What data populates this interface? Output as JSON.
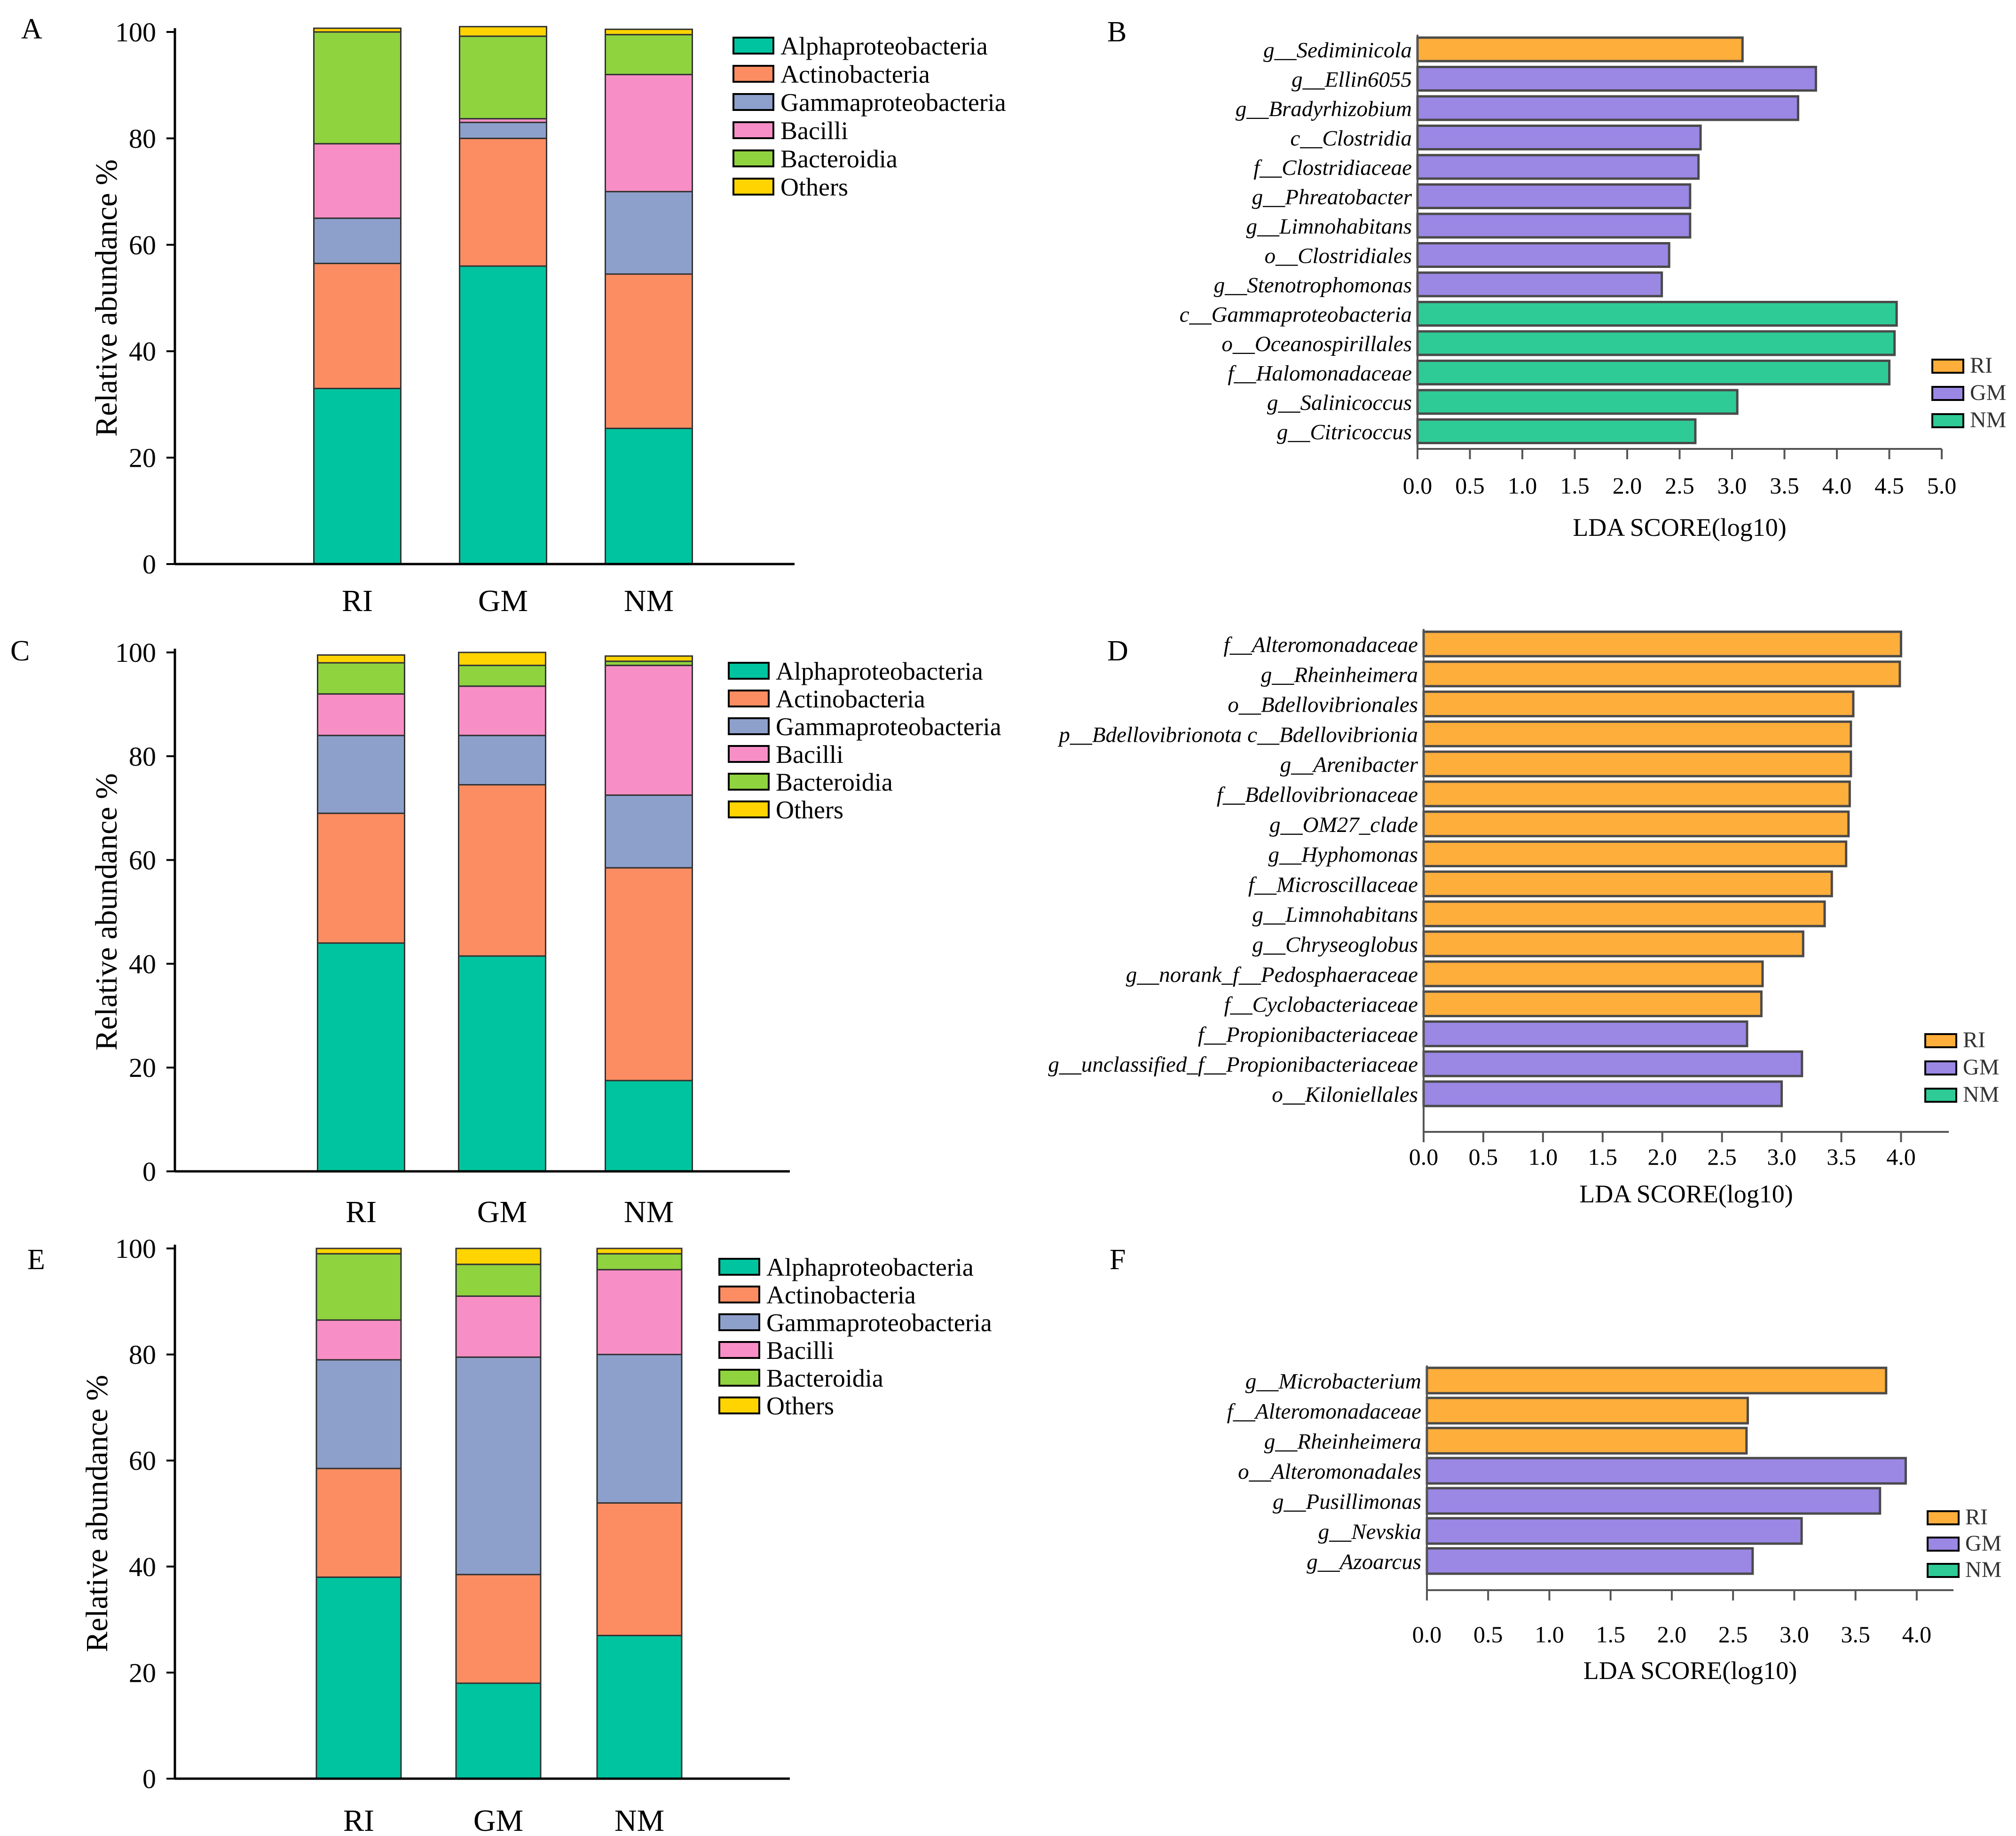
{
  "colors": {
    "Alphaproteobacteria": "#00c49f",
    "Actinobacteria": "#fc8d62",
    "Gammaproteobacteria": "#8da0cb",
    "Bacilli": "#f78fc6",
    "Bacteroidia": "#8fd33f",
    "Others": "#ffd400",
    "RI": "#fdae3b",
    "GM": "#9b87e4",
    "NM": "#2ecb96"
  },
  "chart_data": [
    {
      "panel": "A",
      "type": "bar",
      "stacked": true,
      "ylabel": "Relative abundance  %",
      "ylim": [
        0,
        100
      ],
      "yticks": [
        "0",
        "20",
        "40",
        "60",
        "80",
        "100"
      ],
      "categories": [
        "RI",
        "GM",
        "NM"
      ],
      "legend": [
        "Alphaproteobacteria",
        "Actinobacteria",
        "Gammaproteobacteria",
        "Bacilli",
        "Bacteroidia",
        "Others"
      ],
      "series": [
        {
          "name": "Alphaproteobacteria",
          "values": [
            33,
            56,
            25.5
          ]
        },
        {
          "name": "Actinobacteria",
          "values": [
            23.5,
            24,
            29
          ]
        },
        {
          "name": "Gammaproteobacteria",
          "values": [
            8.5,
            3,
            15.5
          ]
        },
        {
          "name": "Bacilli",
          "values": [
            14,
            0.7,
            22
          ]
        },
        {
          "name": "Bacteroidia",
          "values": [
            21,
            15.5,
            7.5
          ]
        },
        {
          "name": "Others",
          "values": [
            0.7,
            1.8,
            1
          ]
        }
      ]
    },
    {
      "panel": "B",
      "type": "bar",
      "orientation": "horizontal",
      "xlabel": "LDA SCORE(log10)",
      "xlim": [
        0,
        5
      ],
      "xticks": [
        "0.0",
        "0.5",
        "1.0",
        "1.5",
        "2.0",
        "2.5",
        "3.0",
        "3.5",
        "4.0",
        "4.5",
        "5.0"
      ],
      "legend": [
        "RI",
        "GM",
        "NM"
      ],
      "bars": [
        {
          "label": "g__Sediminicola",
          "group": "RI",
          "value": 3.1
        },
        {
          "label": "g__Ellin6055",
          "group": "GM",
          "value": 3.8
        },
        {
          "label": "g__Bradyrhizobium",
          "group": "GM",
          "value": 3.63
        },
        {
          "label": "c__Clostridia",
          "group": "GM",
          "value": 2.7
        },
        {
          "label": "f__Clostridiaceae",
          "group": "GM",
          "value": 2.68
        },
        {
          "label": "g__Phreatobacter",
          "group": "GM",
          "value": 2.6
        },
        {
          "label": "g__Limnohabitans",
          "group": "GM",
          "value": 2.6
        },
        {
          "label": "o__Clostridiales",
          "group": "GM",
          "value": 2.4
        },
        {
          "label": "g__Stenotrophomonas",
          "group": "GM",
          "value": 2.33
        },
        {
          "label": "c__Gammaproteobacteria",
          "group": "NM",
          "value": 4.57
        },
        {
          "label": "o__Oceanospirillales",
          "group": "NM",
          "value": 4.55
        },
        {
          "label": "f__Halomonadaceae",
          "group": "NM",
          "value": 4.5
        },
        {
          "label": "g__Salinicoccus",
          "group": "NM",
          "value": 3.05
        },
        {
          "label": "g__Citricoccus",
          "group": "NM",
          "value": 2.65
        }
      ]
    },
    {
      "panel": "C",
      "type": "bar",
      "stacked": true,
      "ylabel": "Relative abundance  %",
      "ylim": [
        0,
        100
      ],
      "yticks": [
        "0",
        "20",
        "40",
        "60",
        "80",
        "100"
      ],
      "categories": [
        "RI",
        "GM",
        "NM"
      ],
      "legend": [
        "Alphaproteobacteria",
        "Actinobacteria",
        "Gammaproteobacteria",
        "Bacilli",
        "Bacteroidia",
        "Others"
      ],
      "series": [
        {
          "name": "Alphaproteobacteria",
          "values": [
            44,
            41.5,
            17.5
          ]
        },
        {
          "name": "Actinobacteria",
          "values": [
            25,
            33,
            41
          ]
        },
        {
          "name": "Gammaproteobacteria",
          "values": [
            15,
            9.5,
            14
          ]
        },
        {
          "name": "Bacilli",
          "values": [
            8,
            9.5,
            25
          ]
        },
        {
          "name": "Bacteroidia",
          "values": [
            6,
            4,
            0.8
          ]
        },
        {
          "name": "Others",
          "values": [
            1.5,
            2.5,
            1
          ]
        }
      ]
    },
    {
      "panel": "D",
      "type": "bar",
      "orientation": "horizontal",
      "xlabel": "LDA SCORE(log10)",
      "xlim": [
        0,
        4.4
      ],
      "xticks": [
        "0.0",
        "0.5",
        "1.0",
        "1.5",
        "2.0",
        "2.5",
        "3.0",
        "3.5",
        "4.0"
      ],
      "legend": [
        "RI",
        "GM",
        "NM"
      ],
      "bars": [
        {
          "label": "f__Alteromonadaceae",
          "group": "RI",
          "value": 4.0
        },
        {
          "label": "g__Rheinheimera",
          "group": "RI",
          "value": 3.99
        },
        {
          "label": "o__Bdellovibrionales",
          "group": "RI",
          "value": 3.6
        },
        {
          "label": "p__Bdellovibrionota  c__Bdellovibrionia",
          "group": "RI",
          "value": 3.58
        },
        {
          "label": "g__Arenibacter",
          "group": "RI",
          "value": 3.58
        },
        {
          "label": "f__Bdellovibrionaceae",
          "group": "RI",
          "value": 3.57
        },
        {
          "label": "g__OM27_clade",
          "group": "RI",
          "value": 3.56
        },
        {
          "label": "g__Hyphomonas",
          "group": "RI",
          "value": 3.54
        },
        {
          "label": "f__Microscillaceae",
          "group": "RI",
          "value": 3.42
        },
        {
          "label": "g__Limnohabitans",
          "group": "RI",
          "value": 3.36
        },
        {
          "label": "g__Chryseoglobus",
          "group": "RI",
          "value": 3.18
        },
        {
          "label": "g__norank_f__Pedosphaeraceae",
          "group": "RI",
          "value": 2.84
        },
        {
          "label": "f__Cyclobacteriaceae",
          "group": "RI",
          "value": 2.83
        },
        {
          "label": "f__Propionibacteriaceae",
          "group": "GM",
          "value": 2.71
        },
        {
          "label": "g__unclassified_f__Propionibacteriaceae",
          "group": "GM",
          "value": 3.17
        },
        {
          "label": "o__Kiloniellales",
          "group": "GM",
          "value": 3.0
        }
      ]
    },
    {
      "panel": "E",
      "type": "bar",
      "stacked": true,
      "ylabel": "Relative abundance  %",
      "ylim": [
        0,
        100
      ],
      "yticks": [
        "0",
        "20",
        "40",
        "60",
        "80",
        "100"
      ],
      "categories": [
        "RI",
        "GM",
        "NM"
      ],
      "legend": [
        "Alphaproteobacteria",
        "Actinobacteria",
        "Gammaproteobacteria",
        "Bacilli",
        "Bacteroidia",
        "Others"
      ],
      "series": [
        {
          "name": "Alphaproteobacteria",
          "values": [
            38,
            18,
            27
          ]
        },
        {
          "name": "Actinobacteria",
          "values": [
            20.5,
            20.5,
            25
          ]
        },
        {
          "name": "Gammaproteobacteria",
          "values": [
            20.5,
            41,
            28
          ]
        },
        {
          "name": "Bacilli",
          "values": [
            7.5,
            11.5,
            16
          ]
        },
        {
          "name": "Bacteroidia",
          "values": [
            12.5,
            6,
            3
          ]
        },
        {
          "name": "Others",
          "values": [
            1,
            3,
            1
          ]
        }
      ]
    },
    {
      "panel": "F",
      "type": "bar",
      "orientation": "horizontal",
      "xlabel": "LDA SCORE(log10)",
      "xlim": [
        0,
        4.3
      ],
      "xticks": [
        "0.0",
        "0.5",
        "1.0",
        "1.5",
        "2.0",
        "2.5",
        "3.0",
        "3.5",
        "4.0"
      ],
      "legend": [
        "RI",
        "GM",
        "NM"
      ],
      "bars": [
        {
          "label": "g__Microbacterium",
          "group": "RI",
          "value": 3.75
        },
        {
          "label": "f__Alteromonadaceae",
          "group": "RI",
          "value": 2.62
        },
        {
          "label": "g__Rheinheimera",
          "group": "RI",
          "value": 2.61
        },
        {
          "label": "o__Alteromonadales",
          "group": "GM",
          "value": 3.91
        },
        {
          "label": "g__Pusillimonas",
          "group": "GM",
          "value": 3.7
        },
        {
          "label": "g__Nevskia",
          "group": "GM",
          "value": 3.06
        },
        {
          "label": "g__Azoarcus",
          "group": "GM",
          "value": 2.66
        }
      ]
    }
  ]
}
